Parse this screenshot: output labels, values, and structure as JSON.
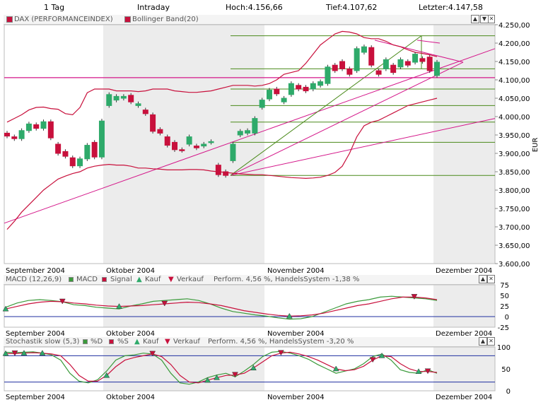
{
  "header": {
    "period": "1 Tag",
    "interval": "Intraday",
    "high": "Hoch:4.156,66",
    "low": "Tief:4.107,62",
    "last": "Letzter:4.147,58"
  },
  "main": {
    "legend": {
      "series1": "DAX (PERFORMANCEINDEX)",
      "series2": "Bollinger Band(20)"
    },
    "ylabel": "EUR"
  },
  "macd_panel": {
    "legend": {
      "title": "MACD (12,26,9)",
      "macd": "MACD",
      "signal": "Signal",
      "buy": "Kauf",
      "sell": "Verkauf",
      "perf": "Perform. 4,56 %, HandelsSystem -1,38 %"
    }
  },
  "stoch_panel": {
    "legend": {
      "title": "Stochastik slow (5,3)",
      "d": "%D",
      "s": "%S",
      "buy": "Kauf",
      "sell": "Verkauf",
      "perf": "Perform. 4,56 %, HandelsSystem -3,20 %"
    }
  },
  "x_labels": [
    "September 2004",
    "Oktober 2004",
    "November 2004",
    "Dezember 2004"
  ],
  "colors": {
    "up": "#2eaa6a",
    "down": "#c8103c",
    "band": "#c8103c",
    "macd": "#3a9a3a",
    "signal": "#c8103c",
    "trend": "#d4178a",
    "fib": "#4a8a1a",
    "shade": "#ececec",
    "zero": "#1f2fa0"
  },
  "chart_data": [
    {
      "type": "candlestick",
      "title": "DAX (PERFORMANCEINDEX)",
      "ylabel": "EUR",
      "ylim": [
        3600,
        4250
      ],
      "yticks": [
        "4.250,00",
        "4.200,00",
        "4.150,00",
        "4.100,00",
        "4.050,00",
        "4.000,00",
        "3.950,00",
        "3.900,00",
        "3.850,00",
        "3.800,00",
        "3.750,00",
        "3.700,00",
        "3.650,00",
        "3.600,00"
      ],
      "yticks_values": [
        4250,
        4200,
        4150,
        4100,
        4050,
        4000,
        3950,
        3900,
        3850,
        3800,
        3750,
        3700,
        3650,
        3600
      ],
      "candles": [
        {
          "o": 3955,
          "c": 3947
        },
        {
          "o": 3945,
          "c": 3940
        },
        {
          "o": 3940,
          "c": 3962
        },
        {
          "o": 3962,
          "c": 3980
        },
        {
          "o": 3978,
          "c": 3968
        },
        {
          "o": 3968,
          "c": 3986
        },
        {
          "o": 3986,
          "c": 3942
        },
        {
          "o": 3925,
          "c": 3900
        },
        {
          "o": 3905,
          "c": 3892
        },
        {
          "o": 3888,
          "c": 3866
        },
        {
          "o": 3866,
          "c": 3885
        },
        {
          "o": 3885,
          "c": 3922
        },
        {
          "o": 3930,
          "c": 3890
        },
        {
          "o": 3890,
          "c": 3988
        },
        {
          "o": 4030,
          "c": 4060
        },
        {
          "o": 4045,
          "c": 4055
        },
        {
          "o": 4050,
          "c": 4055
        },
        {
          "o": 4058,
          "c": 4040
        },
        {
          "o": 4030,
          "c": 4035
        },
        {
          "o": 4018,
          "c": 4008
        },
        {
          "o": 4005,
          "c": 3960
        },
        {
          "o": 3965,
          "c": 3955
        },
        {
          "o": 3945,
          "c": 3922
        },
        {
          "o": 3930,
          "c": 3910
        },
        {
          "o": 3910,
          "c": 3908
        },
        {
          "o": 3925,
          "c": 3945
        },
        {
          "o": 3920,
          "c": 3915
        },
        {
          "o": 3920,
          "c": 3925
        },
        {
          "o": 3930,
          "c": 3932
        },
        {
          "o": 3868,
          "c": 3842
        },
        {
          "o": 3850,
          "c": 3840
        },
        {
          "o": 3880,
          "c": 3925
        },
        {
          "o": 3950,
          "c": 3960
        },
        {
          "o": 3955,
          "c": 3962
        },
        {
          "o": 3955,
          "c": 3995
        },
        {
          "o": 4025,
          "c": 4045
        },
        {
          "o": 4048,
          "c": 4072
        },
        {
          "o": 4075,
          "c": 4062
        },
        {
          "o": 4040,
          "c": 4050
        },
        {
          "o": 4060,
          "c": 4090
        },
        {
          "o": 4085,
          "c": 4075
        },
        {
          "o": 4080,
          "c": 4070
        },
        {
          "o": 4075,
          "c": 4090
        },
        {
          "o": 4085,
          "c": 4095
        },
        {
          "o": 4090,
          "c": 4135
        },
        {
          "o": 4140,
          "c": 4125
        },
        {
          "o": 4150,
          "c": 4130
        },
        {
          "o": 4130,
          "c": 4115
        },
        {
          "o": 4125,
          "c": 4185
        },
        {
          "o": 4175,
          "c": 4190
        },
        {
          "o": 4188,
          "c": 4140
        },
        {
          "o": 4125,
          "c": 4115
        },
        {
          "o": 4130,
          "c": 4155
        },
        {
          "o": 4140,
          "c": 4120
        },
        {
          "o": 4135,
          "c": 4155
        },
        {
          "o": 4150,
          "c": 4140
        },
        {
          "o": 4148,
          "c": 4170
        },
        {
          "o": 4158,
          "c": 4150
        },
        {
          "o": 4162,
          "c": 4125
        },
        {
          "o": 4112,
          "c": 4148
        }
      ],
      "bollinger_upper": [
        3985,
        3995,
        4005,
        4018,
        4025,
        4026,
        4022,
        4020,
        4008,
        4005,
        4025,
        4065,
        4075,
        4075,
        4075,
        4070,
        4070,
        4070,
        4068,
        4070,
        4075,
        4075,
        4075,
        4070,
        4068,
        4066,
        4066,
        4068,
        4070,
        4075,
        4080,
        4085,
        4085,
        4085,
        4083,
        4085,
        4090,
        4100,
        4115,
        4120,
        4125,
        4145,
        4170,
        4195,
        4210,
        4225,
        4232,
        4230,
        4225,
        4215,
        4212,
        4212,
        4205,
        4195,
        4190,
        4182,
        4175,
        4172,
        4168,
        4163
      ],
      "bollinger_lower": [
        3693,
        3715,
        3740,
        3760,
        3780,
        3800,
        3815,
        3830,
        3838,
        3845,
        3850,
        3860,
        3865,
        3868,
        3870,
        3868,
        3868,
        3865,
        3860,
        3860,
        3858,
        3857,
        3855,
        3855,
        3855,
        3856,
        3856,
        3855,
        3852,
        3850,
        3848,
        3846,
        3844,
        3843,
        3842,
        3842,
        3840,
        3838,
        3836,
        3834,
        3833,
        3832,
        3833,
        3835,
        3840,
        3848,
        3865,
        3900,
        3945,
        3975,
        3985,
        3990,
        4000,
        4010,
        4020,
        4030,
        4035,
        4040,
        4045,
        4050
      ],
      "horizontal_line": 4106
    },
    {
      "type": "line",
      "title": "MACD (12,26,9)",
      "ylim": [
        -25,
        75
      ],
      "yticks": [
        "75",
        "50",
        "25",
        "0",
        "-25"
      ],
      "yticks_values": [
        75,
        50,
        25,
        0,
        -25
      ],
      "series": [
        {
          "name": "MACD",
          "values": [
            22,
            32,
            38,
            40,
            38,
            35,
            28,
            26,
            22,
            20,
            18,
            25,
            30,
            36,
            38,
            40,
            42,
            38,
            30,
            20,
            12,
            8,
            4,
            1,
            -3,
            -6,
            -5,
            0,
            10,
            20,
            30,
            36,
            40,
            46,
            48,
            46,
            44,
            42,
            38
          ]
        },
        {
          "name": "Signal",
          "values": [
            18,
            24,
            30,
            34,
            36,
            35,
            32,
            30,
            27,
            25,
            24,
            25,
            26,
            28,
            30,
            32,
            34,
            33,
            30,
            26,
            20,
            14,
            10,
            6,
            3,
            1,
            2,
            4,
            8,
            14,
            20,
            26,
            30,
            36,
            42,
            46,
            46,
            44,
            40
          ]
        }
      ]
    },
    {
      "type": "line",
      "title": "Stochastik slow (5,3)",
      "ylim": [
        0,
        100
      ],
      "yticks": [
        "100",
        "50",
        "0"
      ],
      "yticks_values": [
        100,
        50,
        0
      ],
      "series": [
        {
          "name": "%D",
          "values": [
            88,
            87,
            88,
            89,
            86,
            82,
            70,
            40,
            22,
            18,
            25,
            45,
            70,
            80,
            82,
            86,
            84,
            70,
            40,
            18,
            15,
            20,
            30,
            36,
            40,
            32,
            45,
            60,
            78,
            88,
            90,
            86,
            80,
            72,
            60,
            50,
            40,
            45,
            50,
            62,
            78,
            84,
            70,
            48,
            42,
            40,
            48,
            40
          ]
        },
        {
          "name": "%S",
          "values": [
            85,
            85,
            86,
            87,
            86,
            84,
            80,
            60,
            35,
            22,
            22,
            35,
            55,
            70,
            76,
            80,
            84,
            78,
            60,
            35,
            20,
            18,
            24,
            30,
            35,
            36,
            40,
            52,
            66,
            80,
            86,
            88,
            84,
            78,
            70,
            60,
            50,
            46,
            48,
            56,
            70,
            80,
            78,
            62,
            50,
            44,
            44,
            42
          ]
        }
      ],
      "horizontal_lines": [
        80,
        20
      ]
    }
  ]
}
